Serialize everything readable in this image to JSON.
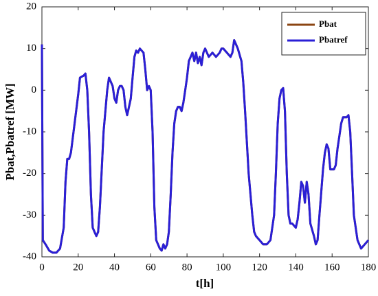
{
  "chart_data": {
    "type": "line",
    "xlabel": "t[h]",
    "ylabel": "Pbat,Pbatref [MW]",
    "x": [
      0,
      0.5,
      2,
      4,
      6,
      8,
      10,
      12,
      13,
      14,
      15,
      16,
      18,
      20,
      21,
      23,
      24,
      25,
      26,
      27,
      28,
      29,
      30,
      31,
      32,
      34,
      36,
      37,
      38,
      39,
      40,
      41,
      42,
      43,
      44,
      45,
      46,
      47,
      48,
      49,
      50,
      51,
      52,
      53,
      54,
      55,
      56,
      57,
      58,
      59,
      60,
      61,
      62,
      63,
      64,
      65,
      66,
      67,
      68,
      69,
      70,
      71,
      72,
      73,
      74,
      75,
      76,
      77,
      78,
      79,
      80,
      81,
      82,
      83,
      84,
      85,
      86,
      87,
      88,
      89,
      90,
      91,
      92,
      94,
      96,
      98,
      99,
      100,
      102,
      104,
      105,
      106,
      107,
      108,
      110,
      111,
      112,
      114,
      116,
      117,
      118,
      120,
      122,
      124,
      126,
      128,
      129,
      130,
      131,
      132,
      133,
      134,
      135,
      136,
      137,
      138,
      140,
      141,
      142,
      143,
      144,
      145,
      146,
      147,
      148,
      150,
      151,
      152,
      153,
      155,
      156,
      157,
      158,
      159,
      160,
      161,
      162,
      163,
      164,
      165,
      166,
      167,
      168,
      169,
      170,
      171,
      172,
      174,
      176,
      178,
      180
    ],
    "series": [
      {
        "name": "Pbat",
        "color": "#8b4513",
        "values": [
          11,
          -36,
          -37,
          -38.5,
          -39,
          -39,
          -38,
          -33,
          -22,
          -16.5,
          -16.5,
          -15,
          -8,
          -1,
          3,
          3.5,
          4,
          0,
          -10,
          -25,
          -33,
          -34,
          -35,
          -34,
          -28,
          -10,
          0,
          3,
          2,
          1,
          -2,
          -3,
          0,
          1,
          1,
          0,
          -4,
          -6,
          -4,
          -2,
          3,
          8,
          9.5,
          9,
          10,
          9.5,
          9,
          5,
          0,
          1,
          0,
          -10,
          -28,
          -36,
          -37,
          -38,
          -38.5,
          -37,
          -38,
          -37,
          -34,
          -25,
          -15,
          -8,
          -5,
          -4,
          -4,
          -5,
          -3,
          0,
          3,
          7,
          8,
          9,
          7,
          9,
          6.5,
          8,
          6,
          9,
          10,
          9,
          8,
          9,
          8,
          9,
          10,
          10,
          9,
          8,
          9,
          12,
          11,
          10,
          7,
          2,
          -5,
          -20,
          -30,
          -34,
          -35,
          -36,
          -37,
          -37,
          -36,
          -30,
          -20,
          -8,
          -2,
          0,
          0.5,
          -5,
          -20,
          -30,
          -32,
          -32,
          -33,
          -31,
          -27,
          -22,
          -23,
          -27,
          -22,
          -25,
          -32,
          -35,
          -37,
          -36,
          -30,
          -19,
          -15,
          -13,
          -14,
          -19,
          -19,
          -19,
          -18,
          -14,
          -11,
          -8,
          -6.5,
          -6.5,
          -6.5,
          -6,
          -10,
          -20,
          -30,
          -36,
          -38,
          -37,
          -36
        ]
      },
      {
        "name": "Pbatref",
        "color": "#2a1fd6",
        "values": [
          11,
          -36,
          -37,
          -38.5,
          -39,
          -39,
          -38,
          -33,
          -22,
          -16.5,
          -16.5,
          -15,
          -8,
          -1,
          3,
          3.5,
          4,
          0,
          -10,
          -25,
          -33,
          -34,
          -35,
          -34,
          -28,
          -10,
          0,
          3,
          2,
          1,
          -2,
          -3,
          0,
          1,
          1,
          0,
          -4,
          -6,
          -4,
          -2,
          3,
          8,
          9.5,
          9,
          10,
          9.5,
          9,
          5,
          0,
          1,
          0,
          -10,
          -28,
          -36,
          -37,
          -38,
          -38.5,
          -37,
          -38,
          -37,
          -34,
          -25,
          -15,
          -8,
          -5,
          -4,
          -4,
          -5,
          -3,
          0,
          3,
          7,
          8,
          9,
          7,
          9,
          6.5,
          8,
          6,
          9,
          10,
          9,
          8,
          9,
          8,
          9,
          10,
          10,
          9,
          8,
          9,
          12,
          11,
          10,
          7,
          2,
          -5,
          -20,
          -30,
          -34,
          -35,
          -36,
          -37,
          -37,
          -36,
          -30,
          -20,
          -8,
          -2,
          0,
          0.5,
          -5,
          -20,
          -30,
          -32,
          -32,
          -33,
          -31,
          -27,
          -22,
          -23,
          -27,
          -22,
          -25,
          -32,
          -35,
          -37,
          -36,
          -30,
          -19,
          -15,
          -13,
          -14,
          -19,
          -19,
          -19,
          -18,
          -14,
          -11,
          -8,
          -6.5,
          -6.5,
          -6.5,
          -6,
          -10,
          -20,
          -30,
          -36,
          -38,
          -37,
          -36
        ]
      }
    ],
    "xlim": [
      0,
      180
    ],
    "xticks": [
      0,
      20,
      40,
      60,
      80,
      100,
      120,
      140,
      160,
      180
    ],
    "ylim": [
      -40,
      20
    ],
    "yticks": [
      -40,
      -30,
      -20,
      -10,
      0,
      10,
      20
    ],
    "grid": false,
    "legend": "upper right"
  }
}
